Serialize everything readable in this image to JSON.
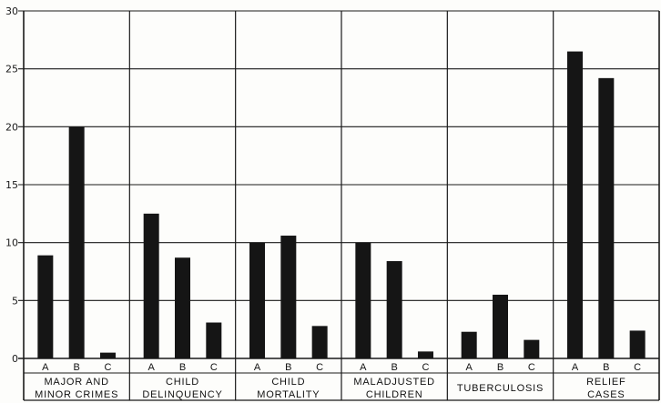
{
  "chart_data": {
    "type": "bar",
    "ylim": [
      0,
      30
    ],
    "yticks": [
      "0",
      "5",
      "10",
      "15",
      "20",
      "25",
      "30"
    ],
    "grid": true,
    "groups": [
      {
        "label_lines": [
          "MAJOR AND",
          "MINOR CRIMES"
        ],
        "bars": [
          {
            "label": "A",
            "value": 8.9
          },
          {
            "label": "B",
            "value": 20.0
          },
          {
            "label": "C",
            "value": 0.5
          }
        ]
      },
      {
        "label_lines": [
          "CHILD",
          "DELINQUENCY"
        ],
        "bars": [
          {
            "label": "A",
            "value": 12.5
          },
          {
            "label": "B",
            "value": 8.7
          },
          {
            "label": "C",
            "value": 3.1
          }
        ]
      },
      {
        "label_lines": [
          "CHILD",
          "MORTALITY"
        ],
        "bars": [
          {
            "label": "A",
            "value": 10.0
          },
          {
            "label": "B",
            "value": 10.6
          },
          {
            "label": "C",
            "value": 2.8
          }
        ]
      },
      {
        "label_lines": [
          "MALADJUSTED",
          "CHILDREN"
        ],
        "bars": [
          {
            "label": "A",
            "value": 10.0
          },
          {
            "label": "B",
            "value": 8.4
          },
          {
            "label": "C",
            "value": 0.6
          }
        ]
      },
      {
        "label_lines": [
          "TUBERCULOSIS"
        ],
        "bars": [
          {
            "label": "A",
            "value": 2.3
          },
          {
            "label": "B",
            "value": 5.5
          },
          {
            "label": "C",
            "value": 1.6
          }
        ]
      },
      {
        "label_lines": [
          "RELIEF",
          "CASES"
        ],
        "bars": [
          {
            "label": "A",
            "value": 26.5
          },
          {
            "label": "B",
            "value": 24.2
          },
          {
            "label": "C",
            "value": 2.4
          }
        ]
      }
    ]
  }
}
